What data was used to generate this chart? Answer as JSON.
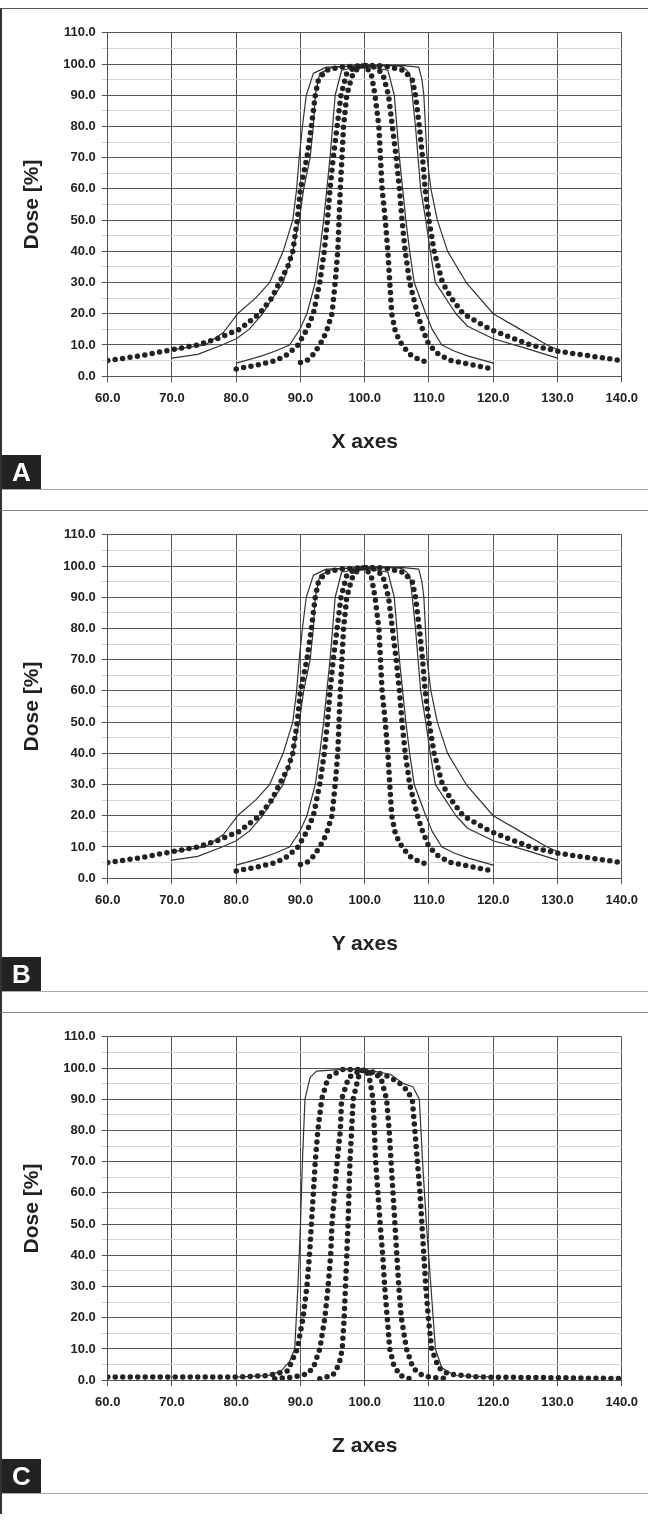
{
  "chart_data": [
    {
      "type": "line",
      "xlabel": "X axes",
      "ylabel": "Dose [%]",
      "annotations": [
        "A"
      ],
      "grid": true,
      "xlim": [
        60,
        140
      ],
      "xticks": [
        {
          "value": 60,
          "label": "60.0"
        },
        {
          "value": 70,
          "label": "70.0"
        },
        {
          "value": 80,
          "label": "80.0"
        },
        {
          "value": 90,
          "label": "90.0"
        },
        {
          "value": 100,
          "label": "100.0"
        },
        {
          "value": 110,
          "label": "110.0"
        },
        {
          "value": 120,
          "label": "120.0"
        },
        {
          "value": 130,
          "label": "130.0"
        },
        {
          "value": 140,
          "label": "140.0"
        }
      ],
      "ylim": [
        0,
        110
      ],
      "yticks": [
        {
          "value": 0,
          "label": "0.0"
        },
        {
          "value": 5,
          "label": null
        },
        {
          "value": 10,
          "label": "10.0"
        },
        {
          "value": 15,
          "label": null
        },
        {
          "value": 20,
          "label": "20.0"
        },
        {
          "value": 25,
          "label": null
        },
        {
          "value": 30,
          "label": "30.0"
        },
        {
          "value": 35,
          "label": null
        },
        {
          "value": 40,
          "label": "40.0"
        },
        {
          "value": 45,
          "label": null
        },
        {
          "value": 50,
          "label": "50.0"
        },
        {
          "value": 55,
          "label": null
        },
        {
          "value": 60,
          "label": "60.0"
        },
        {
          "value": 65,
          "label": null
        },
        {
          "value": 70,
          "label": "70.0"
        },
        {
          "value": 75,
          "label": null
        },
        {
          "value": 80,
          "label": "80.0"
        },
        {
          "value": 85,
          "label": null
        },
        {
          "value": 90,
          "label": "90.0"
        },
        {
          "value": 95,
          "label": null
        },
        {
          "value": 100,
          "label": "100.0"
        },
        {
          "value": 105,
          "label": null
        },
        {
          "value": 110,
          "label": "110.0"
        }
      ],
      "series": [
        {
          "color": "#222222",
          "line_style": "dotted",
          "x": [
            60,
            65,
            70,
            74,
            77,
            80.5,
            83.6,
            85.5,
            86.7,
            88,
            88.8,
            89.5,
            90,
            91,
            91.7,
            92.3,
            92.8,
            94,
            96,
            100,
            102,
            104,
            106,
            107.4,
            107.9,
            108.5,
            109,
            109.4,
            110,
            110.8,
            112.1,
            113.5,
            115.3,
            119.5,
            125.8,
            130,
            135,
            140
          ],
          "values": [
            5,
            6.5,
            8.5,
            10,
            12,
            15,
            20,
            25,
            30,
            35,
            40,
            50,
            60,
            70,
            80,
            90,
            95,
            98,
            99,
            99.5,
            99.5,
            99,
            98,
            95,
            90,
            80,
            70,
            60,
            50,
            40,
            30,
            25,
            20,
            15,
            10,
            8,
            6.5,
            5
          ]
        },
        {
          "color": "#333333",
          "line_style": "solid",
          "x": [
            70,
            75.2,
            78,
            80.2,
            83,
            85.2,
            87.3,
            88.8,
            89.4,
            89.8,
            90.3,
            90.9,
            92,
            94,
            100,
            106,
            108.4,
            108.9,
            109.2,
            109.7,
            110.3,
            111.3,
            112.9,
            115.8,
            120,
            124.2,
            128.4,
            130
          ],
          "values": [
            8.5,
            10,
            14,
            20,
            25,
            30,
            40,
            50,
            60,
            70,
            80,
            90,
            97,
            99,
            99.5,
            99.5,
            99,
            95,
            90,
            70,
            60,
            50,
            40,
            30,
            20,
            15,
            10,
            8.5
          ]
        },
        {
          "color": "#333333",
          "line_style": "solid",
          "x": [
            70,
            74,
            77.8,
            80,
            82,
            84.1,
            86,
            87.3,
            88.8,
            89.8,
            90.5,
            91.5,
            92,
            92.3,
            93,
            95,
            100,
            105,
            106,
            107,
            107.4,
            107.9,
            108.3,
            108.7,
            109.5,
            110.2,
            111,
            114.2,
            116,
            120,
            125,
            130
          ],
          "values": [
            5.8,
            7,
            10,
            12,
            15,
            20,
            26,
            30,
            40,
            50,
            60,
            70,
            80,
            90,
            97,
            99,
            99.5,
            99.5,
            99,
            97,
            90,
            80,
            70,
            60,
            50,
            40,
            30,
            20,
            16,
            12,
            9,
            5.8
          ]
        },
        {
          "color": "#222222",
          "line_style": "dotted",
          "x": [
            80,
            83,
            86.2,
            88,
            89.6,
            91,
            92,
            93,
            93.7,
            94.2,
            94.6,
            95.1,
            95.7,
            96.3,
            97.2,
            98.5,
            100,
            101.5,
            102.8,
            103.7,
            104.3,
            104.9,
            105.4,
            105.8,
            106.3,
            107,
            108.2,
            109,
            110,
            111.5,
            113.4,
            117,
            120
          ],
          "values": [
            2.3,
            3.5,
            5,
            7,
            10,
            15,
            20,
            30,
            40,
            50,
            60,
            70,
            80,
            90,
            97,
            99,
            99.5,
            99,
            97,
            90,
            80,
            70,
            60,
            50,
            40,
            30,
            20,
            15,
            10,
            7,
            5,
            3.5,
            2.3
          ]
        },
        {
          "color": "#333333",
          "line_style": "solid",
          "x": [
            80,
            84,
            86,
            88.3,
            89.9,
            91,
            92.3,
            93,
            93.6,
            94.6,
            95.4,
            96.4,
            100,
            103.6,
            104.6,
            105.4,
            106.4,
            107,
            107.7,
            109.5,
            110.5,
            112,
            114,
            116,
            120
          ],
          "values": [
            4.2,
            6.5,
            8,
            10,
            15,
            20,
            30,
            40,
            50,
            70,
            90,
            98,
            99.5,
            98,
            90,
            70,
            50,
            40,
            30,
            20,
            15,
            10,
            8,
            6.5,
            4.2
          ]
        },
        {
          "color": "#222222",
          "line_style": "dotted",
          "x": [
            90,
            91,
            92,
            93,
            94,
            94.9,
            95.4,
            95.8,
            96.2,
            96.7,
            97.2,
            98,
            99,
            100,
            101,
            101.6,
            102.2,
            102.7,
            103.2,
            103.6,
            104.2,
            104.8,
            105.8,
            107,
            108.7,
            110
          ],
          "values": [
            4.4,
            5,
            7,
            10,
            14,
            20,
            30,
            40,
            60,
            80,
            90,
            96,
            99,
            99.5,
            97,
            90,
            80,
            60,
            50,
            40,
            20,
            14,
            10,
            7,
            5,
            4.4
          ]
        }
      ]
    },
    {
      "type": "line",
      "xlabel": "Y axes",
      "ylabel": "Dose [%]",
      "annotations": [
        "B"
      ],
      "grid": true,
      "xlim": [
        60,
        140
      ],
      "xticks": [
        {
          "value": 60,
          "label": "60.0"
        },
        {
          "value": 70,
          "label": "70.0"
        },
        {
          "value": 80,
          "label": "80.0"
        },
        {
          "value": 90,
          "label": "90.0"
        },
        {
          "value": 100,
          "label": "100.0"
        },
        {
          "value": 110,
          "label": "110.0"
        },
        {
          "value": 120,
          "label": "120.0"
        },
        {
          "value": 130,
          "label": "130.0"
        },
        {
          "value": 140,
          "label": "140.0"
        }
      ],
      "ylim": [
        0,
        110
      ],
      "yticks": [
        {
          "value": 0,
          "label": "0.0"
        },
        {
          "value": 5,
          "label": null
        },
        {
          "value": 10,
          "label": "10.0"
        },
        {
          "value": 15,
          "label": null
        },
        {
          "value": 20,
          "label": "20.0"
        },
        {
          "value": 25,
          "label": null
        },
        {
          "value": 30,
          "label": "30.0"
        },
        {
          "value": 35,
          "label": null
        },
        {
          "value": 40,
          "label": "40.0"
        },
        {
          "value": 45,
          "label": null
        },
        {
          "value": 50,
          "label": "50.0"
        },
        {
          "value": 55,
          "label": null
        },
        {
          "value": 60,
          "label": "60.0"
        },
        {
          "value": 65,
          "label": null
        },
        {
          "value": 70,
          "label": "70.0"
        },
        {
          "value": 75,
          "label": null
        },
        {
          "value": 80,
          "label": "80.0"
        },
        {
          "value": 85,
          "label": null
        },
        {
          "value": 90,
          "label": "90.0"
        },
        {
          "value": 95,
          "label": null
        },
        {
          "value": 100,
          "label": "100.0"
        },
        {
          "value": 105,
          "label": null
        },
        {
          "value": 110,
          "label": "110.0"
        }
      ],
      "series": [
        {
          "color": "#222222",
          "line_style": "dotted",
          "x": [
            60,
            65,
            70,
            74,
            77,
            80.5,
            83.6,
            85.5,
            86.7,
            88,
            88.8,
            89.5,
            90,
            91,
            91.7,
            92.3,
            92.8,
            94,
            96,
            100,
            102,
            104,
            106,
            107.4,
            107.9,
            108.5,
            109,
            109.4,
            110,
            110.8,
            112.1,
            113.5,
            115.3,
            119.5,
            125.8,
            130,
            135,
            140
          ],
          "values": [
            5,
            6.5,
            8.5,
            10,
            12,
            15,
            20,
            25,
            30,
            35,
            40,
            50,
            60,
            70,
            80,
            90,
            95,
            98,
            99,
            99.5,
            99.5,
            99,
            98,
            95,
            90,
            80,
            70,
            60,
            50,
            40,
            30,
            25,
            20,
            15,
            10,
            8,
            6.5,
            5
          ]
        },
        {
          "color": "#333333",
          "line_style": "solid",
          "x": [
            70,
            75.2,
            78,
            80.2,
            83,
            85.2,
            87.3,
            88.8,
            89.4,
            89.8,
            90.3,
            90.9,
            92,
            94,
            100,
            106,
            108.4,
            108.9,
            109.2,
            109.7,
            110.3,
            111.3,
            112.9,
            115.8,
            120,
            124.2,
            128.4,
            130
          ],
          "values": [
            8.5,
            10,
            14,
            20,
            25,
            30,
            40,
            50,
            60,
            70,
            80,
            90,
            97,
            99,
            99.5,
            99.5,
            99,
            95,
            90,
            70,
            60,
            50,
            40,
            30,
            20,
            15,
            10,
            8.5
          ]
        },
        {
          "color": "#333333",
          "line_style": "solid",
          "x": [
            70,
            74,
            77.8,
            80,
            82,
            84.1,
            86,
            87.3,
            88.8,
            89.8,
            90.5,
            91.5,
            92,
            92.3,
            93,
            95,
            100,
            105,
            106,
            107,
            107.4,
            107.9,
            108.3,
            108.7,
            109.5,
            110.2,
            111,
            114.2,
            116,
            120,
            125,
            130
          ],
          "values": [
            5.8,
            7,
            10,
            12,
            15,
            20,
            26,
            30,
            40,
            50,
            60,
            70,
            80,
            90,
            97,
            99,
            99.5,
            99.5,
            99,
            97,
            90,
            80,
            70,
            60,
            50,
            40,
            30,
            20,
            16,
            12,
            9,
            5.8
          ]
        },
        {
          "color": "#222222",
          "line_style": "dotted",
          "x": [
            80,
            83,
            86.2,
            88,
            89.6,
            91,
            92,
            93,
            93.7,
            94.2,
            94.6,
            95.1,
            95.7,
            96.3,
            97.2,
            98.5,
            100,
            101.5,
            102.8,
            103.7,
            104.3,
            104.9,
            105.4,
            105.8,
            106.3,
            107,
            108.2,
            109,
            110,
            111.5,
            113.4,
            117,
            120
          ],
          "values": [
            2.3,
            3.5,
            5,
            7,
            10,
            15,
            20,
            30,
            40,
            50,
            60,
            70,
            80,
            90,
            97,
            99,
            99.5,
            99,
            97,
            90,
            80,
            70,
            60,
            50,
            40,
            30,
            20,
            15,
            10,
            7,
            5,
            3.5,
            2.3
          ]
        },
        {
          "color": "#333333",
          "line_style": "solid",
          "x": [
            80,
            84,
            86,
            88.3,
            89.9,
            91,
            92.3,
            93,
            93.6,
            94.6,
            95.4,
            96.4,
            100,
            103.6,
            104.6,
            105.4,
            106.4,
            107,
            107.7,
            109.5,
            110.5,
            112,
            114,
            116,
            120
          ],
          "values": [
            4.2,
            6.5,
            8,
            10,
            15,
            20,
            30,
            40,
            50,
            70,
            90,
            98,
            99.5,
            98,
            90,
            70,
            50,
            40,
            30,
            20,
            15,
            10,
            8,
            6.5,
            4.2
          ]
        },
        {
          "color": "#222222",
          "line_style": "dotted",
          "x": [
            90,
            91,
            92,
            93,
            94,
            94.9,
            95.4,
            95.8,
            96.2,
            96.7,
            97.2,
            98,
            99,
            100,
            101,
            101.6,
            102.2,
            102.7,
            103.2,
            103.6,
            104.2,
            104.8,
            105.8,
            107,
            108.7,
            110
          ],
          "values": [
            4.4,
            5,
            7,
            10,
            14,
            20,
            30,
            40,
            60,
            80,
            90,
            96,
            99,
            99.5,
            97,
            90,
            80,
            60,
            50,
            40,
            20,
            14,
            10,
            7,
            5,
            4.4
          ]
        }
      ]
    },
    {
      "type": "line",
      "xlabel": "Z axes",
      "ylabel": "Dose [%]",
      "annotations": [
        "C"
      ],
      "grid": true,
      "xlim": [
        60,
        140
      ],
      "xticks": [
        {
          "value": 60,
          "label": "60.0"
        },
        {
          "value": 70,
          "label": "70.0"
        },
        {
          "value": 80,
          "label": "80.0"
        },
        {
          "value": 90,
          "label": "90.0"
        },
        {
          "value": 100,
          "label": "100.0"
        },
        {
          "value": 110,
          "label": "110.0"
        },
        {
          "value": 120,
          "label": "120.0"
        },
        {
          "value": 130,
          "label": "130.0"
        },
        {
          "value": 140,
          "label": "140.0"
        }
      ],
      "ylim": [
        0,
        110
      ],
      "yticks": [
        {
          "value": 0,
          "label": "0.0"
        },
        {
          "value": 5,
          "label": null
        },
        {
          "value": 10,
          "label": "10.0"
        },
        {
          "value": 15,
          "label": null
        },
        {
          "value": 20,
          "label": "20.0"
        },
        {
          "value": 25,
          "label": null
        },
        {
          "value": 30,
          "label": "30.0"
        },
        {
          "value": 35,
          "label": null
        },
        {
          "value": 40,
          "label": "40.0"
        },
        {
          "value": 45,
          "label": null
        },
        {
          "value": 50,
          "label": "50.0"
        },
        {
          "value": 55,
          "label": null
        },
        {
          "value": 60,
          "label": "60.0"
        },
        {
          "value": 65,
          "label": null
        },
        {
          "value": 70,
          "label": "70.0"
        },
        {
          "value": 75,
          "label": null
        },
        {
          "value": 80,
          "label": "80.0"
        },
        {
          "value": 85,
          "label": null
        },
        {
          "value": 90,
          "label": "90.0"
        },
        {
          "value": 95,
          "label": null
        },
        {
          "value": 100,
          "label": "100.0"
        },
        {
          "value": 105,
          "label": null
        },
        {
          "value": 110,
          "label": "110.0"
        }
      ],
      "series": [
        {
          "color": "#333333",
          "line_style": "solid",
          "x": [
            80,
            85,
            87,
            88.3,
            89.1,
            89.6,
            90,
            90.3,
            90.7,
            91.5,
            92.5,
            96,
            100,
            104,
            106,
            107.5,
            108.5,
            109,
            109.6,
            110.3,
            111,
            112,
            114,
            120
          ],
          "values": [
            1,
            1.5,
            3,
            6,
            10,
            30,
            50,
            70,
            90,
            97,
            99,
            99.5,
            99.5,
            98,
            95,
            94,
            90,
            70,
            50,
            30,
            10,
            4,
            1.5,
            1
          ]
        },
        {
          "color": "#222222",
          "line_style": "dotted",
          "x": [
            60,
            70,
            80,
            85,
            88,
            89.5,
            90.4,
            91,
            91.4,
            91.7,
            92,
            92.3,
            92.7,
            93.3,
            94.3,
            96.5,
            99,
            102,
            104,
            105.5,
            106.5,
            107.4,
            107.8,
            108.2,
            108.6,
            108.9,
            109.2,
            109.5,
            109.9,
            110.4,
            111.5,
            113,
            118,
            130,
            140
          ],
          "values": [
            1,
            1,
            1,
            1.5,
            3,
            10,
            20,
            30,
            40,
            50,
            60,
            70,
            80,
            90,
            97,
            99.5,
            99.5,
            98.5,
            97,
            95,
            93,
            90,
            80,
            70,
            60,
            50,
            40,
            30,
            20,
            10,
            4,
            2,
            1,
            0.8,
            0.5
          ]
        },
        {
          "color": "#222222",
          "line_style": "dotted",
          "x": [
            86,
            89,
            91,
            92,
            93,
            93.8,
            94.3,
            94.7,
            94.9,
            95.3,
            95.7,
            96.2,
            96.4,
            97.5,
            99.5,
            101.5,
            102.5,
            103.4,
            103.8,
            104.1,
            104.4,
            104.7,
            105,
            105.3,
            105.7,
            106.5,
            107.5,
            108.5,
            110,
            113
          ],
          "values": [
            0.5,
            1,
            2,
            4,
            10,
            20,
            30,
            40,
            50,
            60,
            70,
            80,
            90,
            97,
            99.5,
            98,
            97,
            90,
            80,
            70,
            60,
            50,
            40,
            30,
            20,
            10,
            4,
            2,
            1,
            0.5
          ]
        },
        {
          "color": "#222222",
          "line_style": "dotted",
          "x": [
            93,
            95,
            96,
            96.5,
            96.8,
            97,
            97.2,
            97.4,
            97.7,
            98.2,
            99,
            99.4,
            99.8,
            100.3,
            100.7,
            101.3,
            101.7,
            102.4,
            102.8,
            103.1,
            103.5,
            103.9,
            104.5,
            105.5,
            107
          ],
          "values": [
            0.5,
            1.5,
            5,
            10,
            20,
            30,
            40,
            50,
            70,
            90,
            97,
            99,
            99.5,
            99,
            97,
            90,
            70,
            50,
            40,
            30,
            20,
            10,
            5,
            1.5,
            0.5
          ]
        }
      ]
    }
  ]
}
